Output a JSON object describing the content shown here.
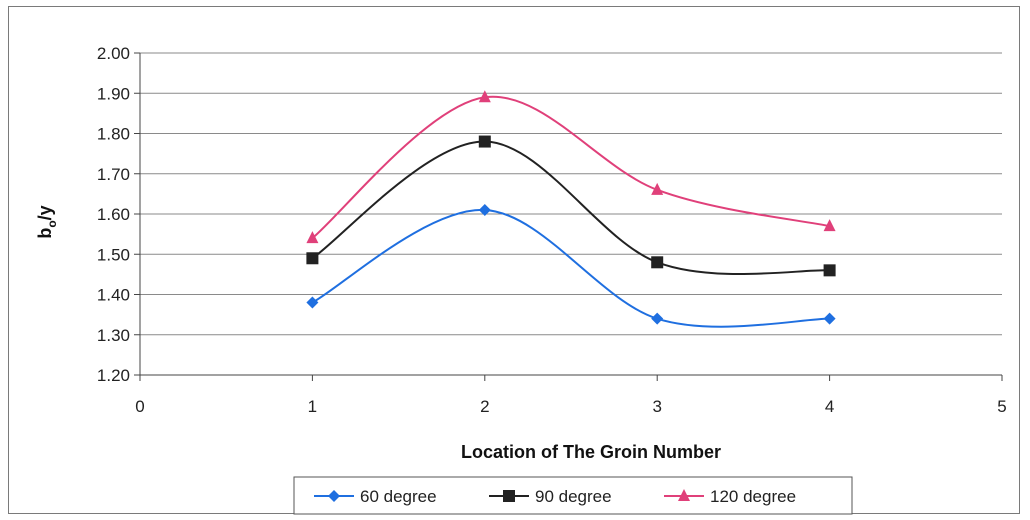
{
  "chart_data": {
    "type": "line",
    "title": "",
    "xlabel": "Location of The Groin Number",
    "ylabel_main": "b",
    "ylabel_sub": "o",
    "ylabel_tail": "/y",
    "xlim": [
      0,
      5
    ],
    "ylim": [
      1.2,
      2.0
    ],
    "x_ticks": [
      "0",
      "1",
      "2",
      "3",
      "4",
      "5"
    ],
    "y_ticks": [
      "1.20",
      "1.30",
      "1.40",
      "1.50",
      "1.60",
      "1.70",
      "1.80",
      "1.90",
      "2.00"
    ],
    "grid": true,
    "legend_position": "bottom",
    "x": [
      1,
      2,
      3,
      4
    ],
    "series": [
      {
        "name": "60 degree",
        "values": [
          1.38,
          1.61,
          1.34,
          1.34
        ],
        "color": "#1f6fe0",
        "marker": "diamond"
      },
      {
        "name": "90 degree",
        "values": [
          1.49,
          1.78,
          1.48,
          1.46
        ],
        "color": "#222222",
        "marker": "square"
      },
      {
        "name": "120 degree",
        "values": [
          1.54,
          1.89,
          1.66,
          1.57
        ],
        "color": "#e0407a",
        "marker": "triangle"
      }
    ]
  }
}
